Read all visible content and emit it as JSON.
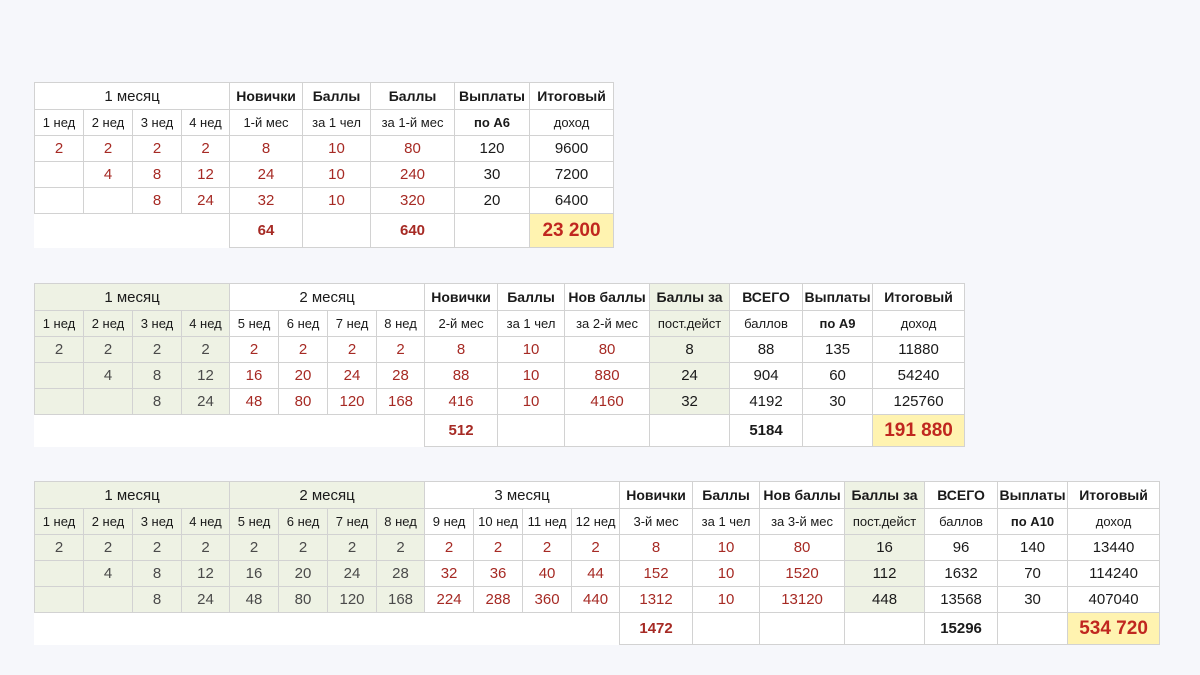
{
  "table1": {
    "header_month": "1 месяц",
    "weeks": [
      "1 нед",
      "2 нед",
      "3 нед",
      "4 нед"
    ],
    "col_newbies": [
      "Новички",
      "1-й мес"
    ],
    "col_points_per": [
      "Баллы",
      "за 1 чел"
    ],
    "col_points_month": [
      "Баллы",
      "за 1-й мес"
    ],
    "col_payouts": [
      "Выплаты",
      "по А6"
    ],
    "col_income": [
      "Итоговый",
      "доход"
    ],
    "rows": [
      {
        "w1": "2",
        "w2": "2",
        "w3": "2",
        "w4": "2",
        "newbies": "8",
        "per": "10",
        "month": "80",
        "payout": "120",
        "income": "9600"
      },
      {
        "w1": "",
        "w2": "4",
        "w3": "8",
        "w4": "12",
        "newbies": "24",
        "per": "10",
        "month": "240",
        "payout": "30",
        "income": "7200"
      },
      {
        "w1": "",
        "w2": "",
        "w3": "8",
        "w4": "24",
        "newbies": "32",
        "per": "10",
        "month": "320",
        "payout": "20",
        "income": "6400"
      }
    ],
    "totals": {
      "newbies": "64",
      "month": "640",
      "income": "23 200"
    }
  },
  "table2": {
    "header_month1": "1 месяц",
    "header_month2": "2 месяц",
    "weeks_m1": [
      "1 нед",
      "2 нед",
      "3 нед",
      "4 нед"
    ],
    "weeks_m2": [
      "5 нед",
      "6 нед",
      "7 нед",
      "8 нед"
    ],
    "col_newbies": [
      "Новички",
      "2-й мес"
    ],
    "col_points_per": [
      "Баллы",
      "за 1 чел"
    ],
    "col_new_points": [
      "Нов баллы",
      "за 2-й мес"
    ],
    "col_const": [
      "Баллы за",
      "пост.дейст"
    ],
    "col_total_points": [
      "ВСЕГО",
      "баллов"
    ],
    "col_payouts": [
      "Выплаты",
      "по А9"
    ],
    "col_income": [
      "Итоговый",
      "доход"
    ],
    "rows": [
      {
        "m1": [
          "2",
          "2",
          "2",
          "2"
        ],
        "m2": [
          "2",
          "2",
          "2",
          "2"
        ],
        "newbies": "8",
        "per": "10",
        "newpts": "80",
        "const": "8",
        "total": "88",
        "payout": "135",
        "income": "11880"
      },
      {
        "m1": [
          "",
          "4",
          "8",
          "12"
        ],
        "m2": [
          "16",
          "20",
          "24",
          "28"
        ],
        "newbies": "88",
        "per": "10",
        "newpts": "880",
        "const": "24",
        "total": "904",
        "payout": "60",
        "income": "54240"
      },
      {
        "m1": [
          "",
          "",
          "8",
          "24"
        ],
        "m2": [
          "48",
          "80",
          "120",
          "168"
        ],
        "newbies": "416",
        "per": "10",
        "newpts": "4160",
        "const": "32",
        "total": "4192",
        "payout": "30",
        "income": "125760"
      }
    ],
    "totals": {
      "newbies": "512",
      "total": "5184",
      "income": "191 880"
    }
  },
  "table3": {
    "header_month1": "1 месяц",
    "header_month2": "2 месяц",
    "header_month3": "3 месяц",
    "weeks_m1": [
      "1 нед",
      "2 нед",
      "3 нед",
      "4 нед"
    ],
    "weeks_m2": [
      "5 нед",
      "6 нед",
      "7 нед",
      "8 нед"
    ],
    "weeks_m3": [
      "9 нед",
      "10 нед",
      "11 нед",
      "12 нед"
    ],
    "col_newbies": [
      "Новички",
      "3-й мес"
    ],
    "col_points_per": [
      "Баллы",
      "за 1 чел"
    ],
    "col_new_points": [
      "Нов баллы",
      "за 3-й мес"
    ],
    "col_const": [
      "Баллы за",
      "пост.дейст"
    ],
    "col_total_points": [
      "ВСЕГО",
      "баллов"
    ],
    "col_payouts": [
      "Выплаты",
      "по А10"
    ],
    "col_income": [
      "Итоговый",
      "доход"
    ],
    "rows": [
      {
        "m1": [
          "2",
          "2",
          "2",
          "2"
        ],
        "m2": [
          "2",
          "2",
          "2",
          "2"
        ],
        "m3": [
          "2",
          "2",
          "2",
          "2"
        ],
        "newbies": "8",
        "per": "10",
        "newpts": "80",
        "const": "16",
        "total": "96",
        "payout": "140",
        "income": "13440"
      },
      {
        "m1": [
          "",
          "4",
          "8",
          "12"
        ],
        "m2": [
          "16",
          "20",
          "24",
          "28"
        ],
        "m3": [
          "32",
          "36",
          "40",
          "44"
        ],
        "newbies": "152",
        "per": "10",
        "newpts": "1520",
        "const": "112",
        "total": "1632",
        "payout": "70",
        "income": "114240"
      },
      {
        "m1": [
          "",
          "",
          "8",
          "24"
        ],
        "m2": [
          "48",
          "80",
          "120",
          "168"
        ],
        "m3": [
          "224",
          "288",
          "360",
          "440"
        ],
        "newbies": "1312",
        "per": "10",
        "newpts": "13120",
        "const": "448",
        "total": "13568",
        "payout": "30",
        "income": "407040"
      }
    ],
    "totals": {
      "newbies": "1472",
      "total": "15296",
      "income": "534 720"
    }
  }
}
